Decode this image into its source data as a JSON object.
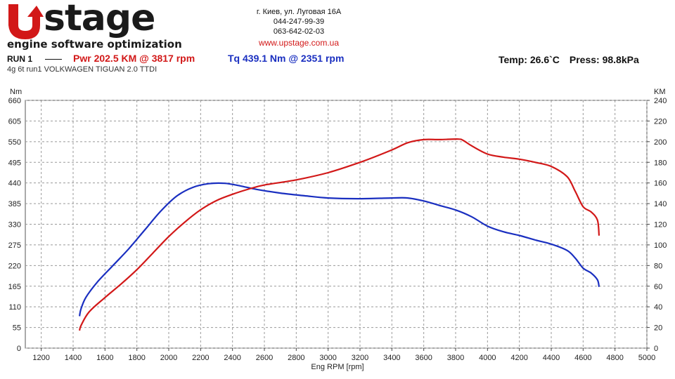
{
  "header": {
    "logo_word": "stage",
    "logo_tagline": "engine software optimization",
    "address": "г. Киев, ул. Луговая 16А",
    "phone1": "044-247-99-39",
    "phone2": "063-642-02-03",
    "website": "www.upstage.com.ua",
    "run_label": "RUN 1",
    "power_summary": "Pwr  202.5 KM @ 3817 rpm",
    "torque_summary": "Tq 439.1 Nm @ 2351 rpm",
    "temp": "Temp: 26.6`C",
    "press": "Press: 98.8kPa",
    "subtitle": "4g 6t run1 VOLKWAGEN TIGUAN 2.0 TTDI"
  },
  "colors": {
    "power": "#d21818",
    "torque": "#1a2fc0",
    "grid": "#999999"
  },
  "chart_data": {
    "type": "line",
    "xlabel": "Eng RPM [rpm]",
    "ylabel_left": "Nm",
    "ylabel_right": "KM",
    "xlim": [
      1100,
      5000
    ],
    "ylim_left": [
      0,
      660
    ],
    "ylim_right": [
      0,
      240
    ],
    "x_ticks": [
      1200,
      1400,
      1600,
      1800,
      2000,
      2200,
      2400,
      2600,
      2800,
      3000,
      3200,
      3400,
      3600,
      3800,
      4000,
      4200,
      4400,
      4600,
      4800,
      5000
    ],
    "y_ticks_left": [
      0,
      55,
      110,
      165,
      220,
      275,
      330,
      385,
      440,
      495,
      550,
      605,
      660
    ],
    "y_ticks_right": [
      0,
      20,
      40,
      60,
      80,
      100,
      120,
      140,
      160,
      180,
      200,
      220,
      240
    ],
    "grid": true,
    "series": [
      {
        "name": "Tq 439.1 Nm @ 2351 rpm",
        "axis": "left",
        "color": "#1a2fc0",
        "x": [
          1440,
          1450,
          1480,
          1550,
          1650,
          1750,
          1850,
          1950,
          2050,
          2150,
          2250,
          2351,
          2450,
          2550,
          2700,
          2850,
          3000,
          3200,
          3400,
          3500,
          3600,
          3700,
          3800,
          3900,
          4000,
          4100,
          4200,
          4300,
          4400,
          4500,
          4550,
          4600,
          4650,
          4690,
          4700
        ],
        "y": [
          85,
          105,
          135,
          175,
          220,
          265,
          315,
          365,
          405,
          428,
          438,
          439,
          432,
          423,
          413,
          406,
          400,
          398,
          400,
          400,
          392,
          380,
          368,
          350,
          325,
          310,
          300,
          288,
          277,
          260,
          240,
          213,
          200,
          182,
          163
        ]
      },
      {
        "name": "Pwr  202.5 KM @ 3817 rpm",
        "axis": "right",
        "color": "#d21818",
        "x": [
          1440,
          1450,
          1500,
          1600,
          1700,
          1800,
          1900,
          2000,
          2100,
          2200,
          2300,
          2400,
          2500,
          2600,
          2800,
          3000,
          3200,
          3400,
          3500,
          3600,
          3700,
          3817,
          3850,
          3900,
          4000,
          4100,
          4200,
          4300,
          4400,
          4500,
          4550,
          4600,
          4650,
          4690,
          4700
        ],
        "y": [
          17,
          22,
          35,
          49,
          62,
          76,
          92,
          108,
          122,
          134,
          143,
          149,
          154,
          158,
          163,
          170,
          180,
          192,
          199,
          202,
          202,
          202.5,
          201,
          196,
          188,
          185,
          183,
          180,
          176,
          166,
          152,
          137,
          132,
          124,
          109
        ]
      }
    ]
  }
}
